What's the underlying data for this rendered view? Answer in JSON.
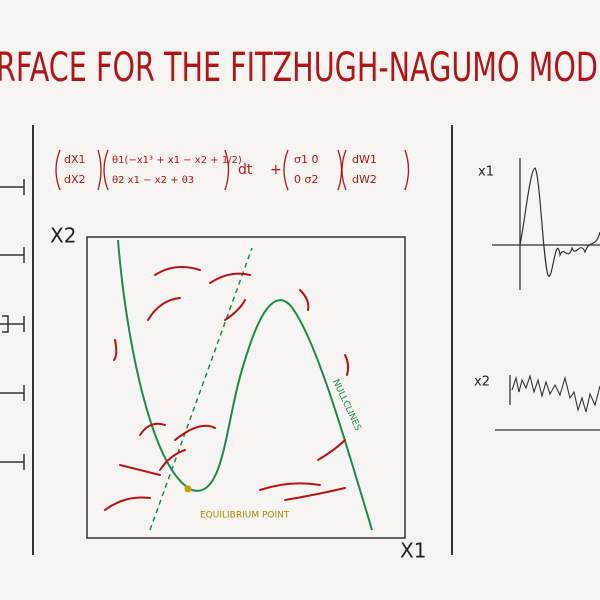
{
  "header": {
    "title": "RFACE FOR THE FITZHUGH-NAGUMO MODE"
  },
  "equation": {
    "lhs_top": "dX1",
    "lhs_bottom": "dX2",
    "drift_top": "θ1(−x1³ + x1 − x2 + 1/2)",
    "drift_bottom": "θ2 x1 − x2 + θ3",
    "dt": "dt",
    "plus": "+",
    "noise_top": "σ1   0",
    "noise_bottom": "0   σ2",
    "dw_top": "dW1",
    "dw_bottom": "dW2"
  },
  "phase_plot": {
    "y_label": "X2",
    "x_label": "X1",
    "nullcline_label": "NULLCLINES",
    "equilibrium_label": "EQUILIBRIUM POINT"
  },
  "traces": {
    "top_label": "x1",
    "bottom_label": "x2"
  }
}
